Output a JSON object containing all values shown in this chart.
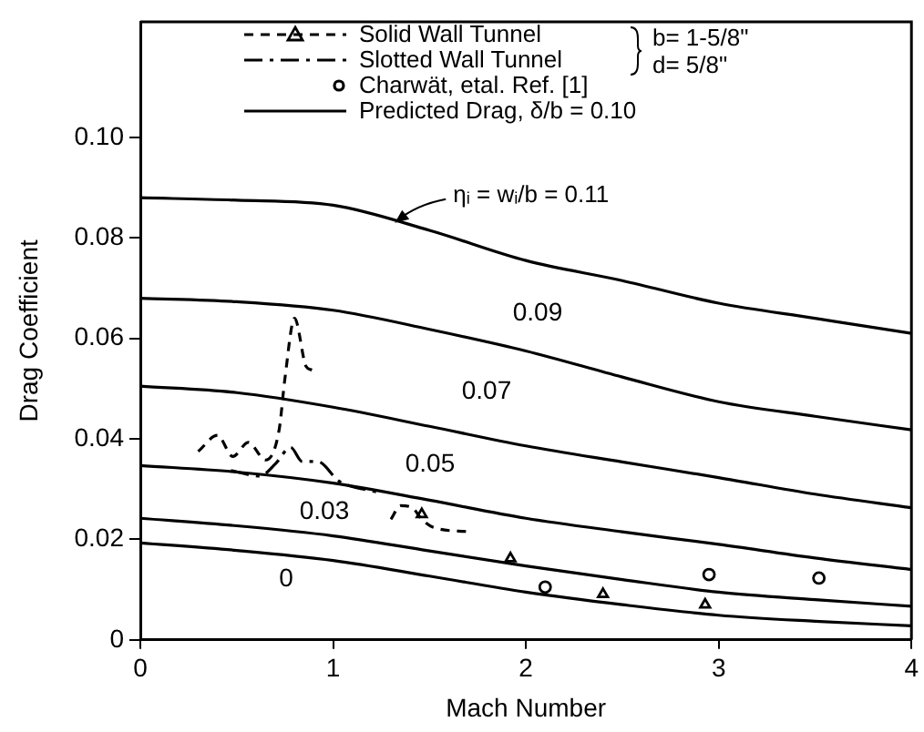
{
  "chart_data": {
    "type": "line",
    "xlabel": "Mach Number",
    "ylabel": "Drag Coefficient",
    "xlim": [
      0,
      4
    ],
    "xticks": [
      0,
      1,
      2,
      3,
      4
    ],
    "ylim": [
      0,
      0.123
    ],
    "yticks": [
      0,
      {
        "value": 0.02,
        "label": "0.02"
      },
      {
        "value": 0.04,
        "label": "0.04"
      },
      {
        "value": 0.06,
        "label": "0.06"
      },
      {
        "value": 0.08,
        "label": "0.08"
      },
      {
        "value": 0.1,
        "label": "0.10"
      }
    ],
    "grid": false,
    "legend": "top",
    "series": [
      {
        "name": "Solid Wall Tunnel",
        "type": "line",
        "line_style": "dashed",
        "color": "#000000",
        "x": [
          0.3,
          0.4,
          0.48,
          0.56,
          0.65,
          0.72,
          0.75,
          0.8,
          0.86,
          0.89,
          1.1,
          1.3,
          1.35,
          1.41,
          1.46,
          1.52,
          1.71
        ],
        "values": [
          0.0375,
          0.0407,
          0.0365,
          0.0393,
          0.0358,
          0.0418,
          0.052,
          0.064,
          0.0544,
          0.0537,
          null,
          0.024,
          0.0267,
          0.0263,
          0.024,
          0.0224,
          0.0215
        ]
      },
      {
        "type": "scatter",
        "marker": "triangle",
        "color": "#000000",
        "x": [
          1.46,
          1.92,
          2.4,
          2.93
        ],
        "values": [
          0.025,
          0.0162,
          0.0091,
          0.007
        ]
      },
      {
        "name": "Slotted Wall Tunnel",
        "type": "line",
        "line_style": "dashdot",
        "color": "#000000",
        "x": [
          0.47,
          0.62,
          0.7,
          0.78,
          0.84,
          0.92,
          1.03,
          1.18,
          1.25
        ],
        "values": [
          0.0337,
          0.0326,
          0.035,
          0.0383,
          0.0355,
          0.0355,
          0.0316,
          0.0298,
          0.0293
        ]
      },
      {
        "name": "Charwät, etal. Ref. [1]",
        "type": "scatter",
        "marker": "circle",
        "color": "#000000",
        "x": [
          2.1,
          2.95,
          3.52
        ],
        "values": [
          0.0105,
          0.013,
          0.0123
        ]
      },
      {
        "name": "Predicted Drag,  δ/b = 0.10",
        "type": "line",
        "line_style": "solid",
        "color": "#000000",
        "x": [
          0,
          0.5,
          1,
          1.5,
          2,
          2.5,
          3,
          3.5,
          4
        ],
        "values": [
          0.088,
          0.0875,
          0.0865,
          0.0815,
          0.0755,
          0.0715,
          0.067,
          0.064,
          0.061
        ]
      },
      {
        "type": "line",
        "line_style": "solid",
        "color": "#000000",
        "x": [
          0,
          0.5,
          1,
          1.5,
          2,
          2.5,
          3,
          3.5,
          4
        ],
        "values": [
          0.068,
          0.0673,
          0.0656,
          0.0618,
          0.0575,
          0.0523,
          0.0474,
          0.0445,
          0.0418
        ]
      },
      {
        "type": "line",
        "line_style": "solid",
        "color": "#000000",
        "x": [
          0,
          0.5,
          1,
          1.5,
          2,
          2.5,
          3,
          3.5,
          4
        ],
        "values": [
          0.0505,
          0.0492,
          0.0463,
          0.0425,
          0.0386,
          0.0354,
          0.0323,
          0.029,
          0.0263
        ]
      },
      {
        "type": "line",
        "line_style": "solid",
        "color": "#000000",
        "x": [
          0,
          0.5,
          1,
          1.5,
          2,
          2.5,
          3,
          3.5,
          4
        ],
        "values": [
          0.0347,
          0.0334,
          0.0312,
          0.0278,
          0.0242,
          0.0215,
          0.019,
          0.0163,
          0.014
        ]
      },
      {
        "type": "line",
        "line_style": "solid",
        "color": "#000000",
        "x": [
          0,
          0.5,
          1,
          1.5,
          2,
          2.5,
          3,
          3.5,
          4
        ],
        "values": [
          0.0242,
          0.0227,
          0.0207,
          0.0177,
          0.0147,
          0.012,
          0.0095,
          0.008,
          0.0067
        ]
      },
      {
        "type": "line",
        "line_style": "solid",
        "color": "#000000",
        "x": [
          0,
          0.5,
          1,
          1.5,
          2,
          2.5,
          3,
          3.5,
          4
        ],
        "values": [
          0.0193,
          0.0178,
          0.0158,
          0.0127,
          0.0095,
          0.007,
          0.0049,
          0.0037,
          0.0028
        ]
      }
    ],
    "annotations": [
      {
        "text": "ηᵢ = wᵢ/b = 0.11",
        "x": 1.32,
        "y": 0.083
      },
      "0.09",
      "0.07",
      "0.05",
      "0.03",
      "0",
      "b= 1-5/8\"",
      "d= 5/8\""
    ]
  }
}
